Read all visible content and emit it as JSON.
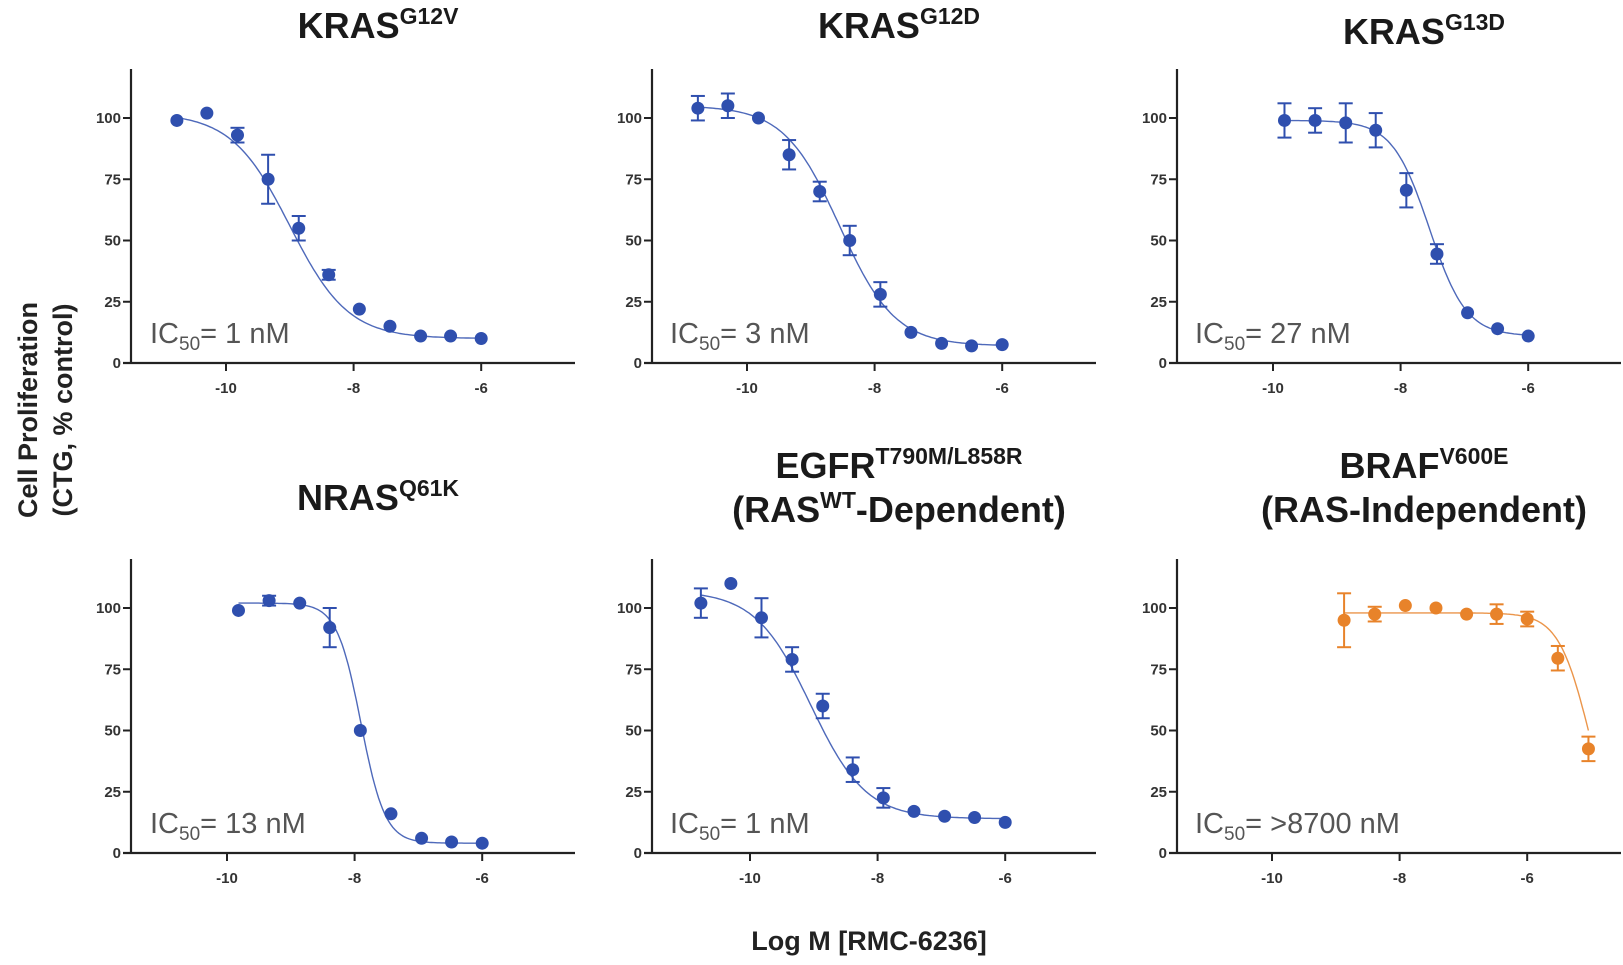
{
  "chart_data": {
    "type": "scatter",
    "figure": "dose-response",
    "shared_ylabel": [
      "Cell Proliferation",
      "(CTG, % control)"
    ],
    "shared_xlabel": "Log M [RMC-6236]",
    "xlim": [
      -11.5,
      -4.5
    ],
    "ylim": [
      0,
      120
    ],
    "xticks": [
      -10,
      -8,
      -6
    ],
    "yticks": [
      0,
      25,
      50,
      75,
      100
    ],
    "grid": false,
    "colors": {
      "sensitive": "#2F4FAE",
      "insensitive": "#E8832A"
    },
    "panels": [
      {
        "title": {
          "main": "KRAS",
          "sup": "G12V",
          "line2": null
        },
        "ic50_label": {
          "prefix": "IC",
          "sub": "50",
          "value": "= 1 nM"
        },
        "color": "#2F4FAE",
        "fit": {
          "top": 102,
          "bottom": 10,
          "log_ic50": -9.0,
          "hill": 0.95
        },
        "points": [
          {
            "x": -10.77,
            "y": 99,
            "err": 0
          },
          {
            "x": -10.3,
            "y": 102,
            "err": 0
          },
          {
            "x": -9.82,
            "y": 93,
            "err": 3
          },
          {
            "x": -9.34,
            "y": 75,
            "err": 10
          },
          {
            "x": -8.86,
            "y": 55,
            "err": 5
          },
          {
            "x": -8.39,
            "y": 36,
            "err": 2
          },
          {
            "x": -7.91,
            "y": 22,
            "err": 0
          },
          {
            "x": -7.43,
            "y": 15,
            "err": 0
          },
          {
            "x": -6.95,
            "y": 11,
            "err": 0
          },
          {
            "x": -6.48,
            "y": 11,
            "err": 0
          },
          {
            "x": -6.0,
            "y": 10,
            "err": 0
          }
        ]
      },
      {
        "title": {
          "main": "KRAS",
          "sup": "G12D",
          "line2": null
        },
        "ic50_label": {
          "prefix": "IC",
          "sub": "50",
          "value": "= 3 nM"
        },
        "color": "#2F4FAE",
        "fit": {
          "top": 105,
          "bottom": 7,
          "log_ic50": -8.55,
          "hill": 1.0
        },
        "points": [
          {
            "x": -10.77,
            "y": 104,
            "err": 5
          },
          {
            "x": -10.3,
            "y": 105,
            "err": 5
          },
          {
            "x": -9.82,
            "y": 100,
            "err": 0
          },
          {
            "x": -9.34,
            "y": 85,
            "err": 6
          },
          {
            "x": -8.86,
            "y": 70,
            "err": 4
          },
          {
            "x": -8.39,
            "y": 50,
            "err": 6
          },
          {
            "x": -7.91,
            "y": 28,
            "err": 5
          },
          {
            "x": -7.43,
            "y": 12.5,
            "err": 0
          },
          {
            "x": -6.95,
            "y": 8,
            "err": 0
          },
          {
            "x": -6.48,
            "y": 7,
            "err": 0
          },
          {
            "x": -6.0,
            "y": 7.5,
            "err": 0
          }
        ]
      },
      {
        "title": {
          "main": "KRAS",
          "sup": "G13D",
          "line2": null
        },
        "ic50_label": {
          "prefix": "IC",
          "sub": "50",
          "value": "= 27 nM"
        },
        "color": "#2F4FAE",
        "fit": {
          "top": 99,
          "bottom": 11,
          "log_ic50": -7.55,
          "hill": 1.5
        },
        "points": [
          {
            "x": -9.82,
            "y": 99,
            "err": 7
          },
          {
            "x": -9.34,
            "y": 99,
            "err": 5
          },
          {
            "x": -8.86,
            "y": 98,
            "err": 8
          },
          {
            "x": -8.39,
            "y": 95,
            "err": 7
          },
          {
            "x": -7.91,
            "y": 70.5,
            "err": 7
          },
          {
            "x": -7.43,
            "y": 44.5,
            "err": 4
          },
          {
            "x": -6.95,
            "y": 20.5,
            "err": 0
          },
          {
            "x": -6.48,
            "y": 14,
            "err": 0
          },
          {
            "x": -6.0,
            "y": 11,
            "err": 0
          }
        ]
      },
      {
        "title": {
          "main": "NRAS",
          "sup": "Q61K",
          "line2": null
        },
        "ic50_label": {
          "prefix": "IC",
          "sub": "50",
          "value": "= 13 nM"
        },
        "color": "#2F4FAE",
        "fit": {
          "top": 102,
          "bottom": 4,
          "log_ic50": -7.9,
          "hill": 2.3
        },
        "points": [
          {
            "x": -9.82,
            "y": 99,
            "err": 0
          },
          {
            "x": -9.34,
            "y": 103,
            "err": 2
          },
          {
            "x": -8.86,
            "y": 102,
            "err": 0
          },
          {
            "x": -8.39,
            "y": 92,
            "err": 8
          },
          {
            "x": -7.91,
            "y": 50,
            "err": 0
          },
          {
            "x": -7.43,
            "y": 16,
            "err": 0
          },
          {
            "x": -6.95,
            "y": 6,
            "err": 0
          },
          {
            "x": -6.48,
            "y": 4.5,
            "err": 0
          },
          {
            "x": -6.0,
            "y": 4,
            "err": 0
          }
        ]
      },
      {
        "title": {
          "main": "EGFR",
          "sup": "T790M/L858R",
          "line2": {
            "pre": "(RAS",
            "sup": "WT",
            "post": "-Dependent)"
          }
        },
        "ic50_label": {
          "prefix": "IC",
          "sub": "50",
          "value": "= 1 nM"
        },
        "color": "#2F4FAE",
        "fit": {
          "top": 107,
          "bottom": 14,
          "log_ic50": -9.05,
          "hill": 1.0
        },
        "points": [
          {
            "x": -10.77,
            "y": 102,
            "err": 6
          },
          {
            "x": -10.3,
            "y": 110,
            "err": 0
          },
          {
            "x": -9.82,
            "y": 96,
            "err": 8
          },
          {
            "x": -9.34,
            "y": 79,
            "err": 5
          },
          {
            "x": -8.86,
            "y": 60,
            "err": 5
          },
          {
            "x": -8.39,
            "y": 34,
            "err": 5
          },
          {
            "x": -7.91,
            "y": 22.5,
            "err": 4
          },
          {
            "x": -7.43,
            "y": 17,
            "err": 0
          },
          {
            "x": -6.95,
            "y": 15,
            "err": 0
          },
          {
            "x": -6.48,
            "y": 14.5,
            "err": 0
          },
          {
            "x": -6.0,
            "y": 12.5,
            "err": 0
          }
        ]
      },
      {
        "title": {
          "main": "BRAF",
          "sup": "V600E",
          "line2": {
            "pre": "(RAS-Independent)",
            "sup": "",
            "post": ""
          }
        },
        "ic50_label": {
          "prefix": "IC",
          "sub": "50",
          "value": "= >8700 nM"
        },
        "color": "#E8832A",
        "fit": {
          "top": 98,
          "bottom": 0,
          "log_ic50": -5.03,
          "hill": 1.8
        },
        "points": [
          {
            "x": -8.87,
            "y": 95,
            "err": 11
          },
          {
            "x": -8.39,
            "y": 97.5,
            "err": 3
          },
          {
            "x": -7.91,
            "y": 101,
            "err": 0
          },
          {
            "x": -7.43,
            "y": 100,
            "err": 0
          },
          {
            "x": -6.95,
            "y": 97.5,
            "err": 0
          },
          {
            "x": -6.48,
            "y": 97.5,
            "err": 4
          },
          {
            "x": -6.0,
            "y": 95.5,
            "err": 3
          },
          {
            "x": -5.52,
            "y": 79.5,
            "err": 5
          },
          {
            "x": -5.04,
            "y": 42.5,
            "err": 5
          }
        ]
      }
    ]
  }
}
